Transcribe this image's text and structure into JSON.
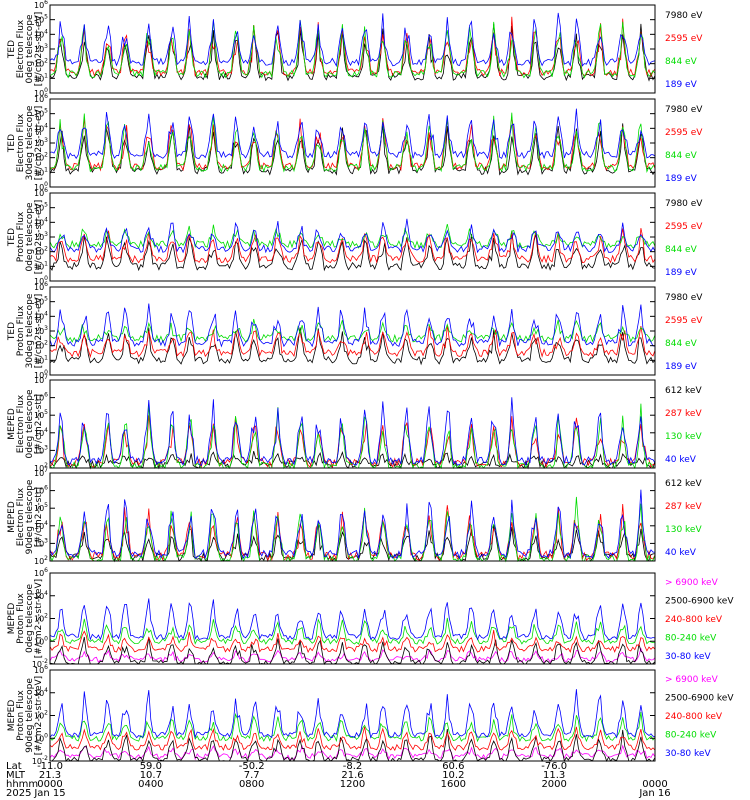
{
  "colors": {
    "blue": "#0000ff",
    "red": "#ff0000",
    "green": "#00dd00",
    "black": "#000000",
    "magenta": "#ff00ff"
  },
  "chart_data": [
    {
      "type": "line",
      "ylabel": [
        "TED",
        "Electron Flux",
        "0deg telescope",
        "[#/cm2-s-str-eV]"
      ],
      "yscale": "log",
      "yticks": [
        "10^0",
        "10^1",
        "10^2",
        "10^3",
        "10^4",
        "10^5",
        "10^6"
      ],
      "ylim": [
        1,
        1000000
      ],
      "series": [
        {
          "name": "7980 eV",
          "color": "#000000",
          "base": 1.1,
          "peak": 4.8
        },
        {
          "name": "2595 eV",
          "color": "#ff0000",
          "base": 1.4,
          "peak": 5.2
        },
        {
          "name": "844 eV",
          "color": "#00dd00",
          "base": 1.3,
          "peak": 5.4
        },
        {
          "name": "189 eV",
          "color": "#0000ff",
          "base": 2.1,
          "peak": 5.6
        }
      ]
    },
    {
      "type": "line",
      "ylabel": [
        "TED",
        "Electron Flux",
        "30deg telescope",
        "[#/cm2-s-str-eV]"
      ],
      "yscale": "log",
      "yticks": [
        "10^0",
        "10^1",
        "10^2",
        "10^3",
        "10^4",
        "10^5",
        "10^6"
      ],
      "ylim": [
        1,
        1000000
      ],
      "series": [
        {
          "name": "7980 eV",
          "color": "#000000",
          "base": 1.1,
          "peak": 4.6
        },
        {
          "name": "2595 eV",
          "color": "#ff0000",
          "base": 1.4,
          "peak": 5.0
        },
        {
          "name": "844 eV",
          "color": "#00dd00",
          "base": 1.3,
          "peak": 5.2
        },
        {
          "name": "189 eV",
          "color": "#0000ff",
          "base": 2.2,
          "peak": 5.5
        }
      ]
    },
    {
      "type": "line",
      "ylabel": [
        "TED",
        "Proton Flux",
        "0deg telescope",
        "[#/cm2-s-str-eV]"
      ],
      "yscale": "log",
      "yticks": [
        "10^0",
        "10^1",
        "10^2",
        "10^3",
        "10^4",
        "10^5",
        "10^6"
      ],
      "ylim": [
        1,
        1000000
      ],
      "series": [
        {
          "name": "7980 eV",
          "color": "#000000",
          "base": 1.0,
          "peak": 3.4
        },
        {
          "name": "2595 eV",
          "color": "#ff0000",
          "base": 1.5,
          "peak": 3.6
        },
        {
          "name": "844 eV",
          "color": "#00dd00",
          "base": 2.5,
          "peak": 3.7
        },
        {
          "name": "189 eV",
          "color": "#0000ff",
          "base": 2.2,
          "peak": 4.2
        }
      ]
    },
    {
      "type": "line",
      "ylabel": [
        "TED",
        "Proton Flux",
        "30deg telescope",
        "[#/cm2-s-str-eV]"
      ],
      "yscale": "log",
      "yticks": [
        "10^0",
        "10^1",
        "10^2",
        "10^3",
        "10^4",
        "10^5",
        "10^6"
      ],
      "ylim": [
        1,
        1000000
      ],
      "series": [
        {
          "name": "7980 eV",
          "color": "#000000",
          "base": 1.0,
          "peak": 3.3
        },
        {
          "name": "2595 eV",
          "color": "#ff0000",
          "base": 1.5,
          "peak": 3.5
        },
        {
          "name": "844 eV",
          "color": "#00dd00",
          "base": 2.5,
          "peak": 3.7
        },
        {
          "name": "189 eV",
          "color": "#0000ff",
          "base": 2.2,
          "peak": 5.3
        }
      ]
    },
    {
      "type": "line",
      "ylabel": [
        "MEPED",
        "Electron Flux",
        "0deg telescope",
        "[#/cm2-s-str]"
      ],
      "yscale": "log",
      "yticks": [
        "10^2",
        "10^3",
        "10^4",
        "10^5",
        "10^6",
        "10^7"
      ],
      "ylim": [
        100,
        10000000
      ],
      "series": [
        {
          "name": "612 keV",
          "color": "#000000",
          "base": 2.2,
          "peak": 2.9
        },
        {
          "name": "287 keV",
          "color": "#ff0000",
          "base": 2.3,
          "peak": 5.2
        },
        {
          "name": "130 keV",
          "color": "#00dd00",
          "base": 2.1,
          "peak": 5.6
        },
        {
          "name": "40 keV",
          "color": "#0000ff",
          "base": 2.4,
          "peak": 6.2
        }
      ]
    },
    {
      "type": "line",
      "ylabel": [
        "MEPED",
        "Electron Flux",
        "90deg telescope",
        "[#/cm2-s-str]"
      ],
      "yscale": "log",
      "yticks": [
        "10^2",
        "10^3",
        "10^4",
        "10^5",
        "10^6",
        "10^7"
      ],
      "ylim": [
        100,
        10000000
      ],
      "series": [
        {
          "name": "612 keV",
          "color": "#000000",
          "base": 2.2,
          "peak": 4.2
        },
        {
          "name": "287 keV",
          "color": "#ff0000",
          "base": 2.3,
          "peak": 5.3
        },
        {
          "name": "130 keV",
          "color": "#00dd00",
          "base": 2.1,
          "peak": 5.6
        },
        {
          "name": "40 keV",
          "color": "#0000ff",
          "base": 2.4,
          "peak": 6.0
        }
      ]
    },
    {
      "type": "line",
      "ylabel": [
        "MEPED",
        "Proton Flux",
        "0deg telescope",
        "[#/cm2-s-str-keV]"
      ],
      "yscale": "log",
      "yticks": [
        "10^-2",
        "10^0",
        "10^2",
        "10^4",
        "10^6"
      ],
      "ylim": [
        0.01,
        1000000
      ],
      "series": [
        {
          "name": "> 6900 keV",
          "color": "#ff00ff",
          "base": -1.6,
          "peak": -0.8
        },
        {
          "name": "2500-6900 keV",
          "color": "#000000",
          "base": -1.9,
          "peak": 0.6
        },
        {
          "name": "240-800 keV",
          "color": "#ff0000",
          "base": -0.7,
          "peak": 0.9
        },
        {
          "name": "80-240 keV",
          "color": "#00dd00",
          "base": 0.0,
          "peak": 2.0
        },
        {
          "name": "30-80 keV",
          "color": "#0000ff",
          "base": 0.4,
          "peak": 4.2
        }
      ]
    },
    {
      "type": "line",
      "ylabel": [
        "MEPED",
        "Proton Flux",
        "90deg telescope",
        "[#/cm2-s-str-keV]"
      ],
      "yscale": "log",
      "yticks": [
        "10^-2",
        "10^0",
        "10^2",
        "10^4",
        "10^6"
      ],
      "ylim": [
        0.01,
        1000000
      ],
      "series": [
        {
          "name": "> 6900 keV",
          "color": "#ff00ff",
          "base": -1.6,
          "peak": -0.6
        },
        {
          "name": "2500-6900 keV",
          "color": "#000000",
          "base": -1.9,
          "peak": 0.7
        },
        {
          "name": "240-800 keV",
          "color": "#ff0000",
          "base": -0.8,
          "peak": 1.1
        },
        {
          "name": "80-240 keV",
          "color": "#00dd00",
          "base": 0.0,
          "peak": 2.2
        },
        {
          "name": "30-80 keV",
          "color": "#0000ff",
          "base": 0.3,
          "peak": 4.3
        }
      ]
    }
  ],
  "x_axis": {
    "row_labels": [
      "Lat",
      "MLT",
      "hhmm",
      "2025"
    ],
    "ticks": [
      {
        "lat": "-11.0",
        "mlt": "21.3",
        "hhmm": "0000",
        "date": "Jan 15"
      },
      {
        "lat": "59.0",
        "mlt": "10.7",
        "hhmm": "0400",
        "date": ""
      },
      {
        "lat": "-50.2",
        "mlt": "7.7",
        "hhmm": "0800",
        "date": ""
      },
      {
        "lat": "-8.2",
        "mlt": "21.6",
        "hhmm": "1200",
        "date": ""
      },
      {
        "lat": "60.6",
        "mlt": "10.2",
        "hhmm": "1600",
        "date": ""
      },
      {
        "lat": "-76.0",
        "mlt": "11.3",
        "hhmm": "2000",
        "date": ""
      },
      {
        "lat": "",
        "mlt": "",
        "hhmm": "0000",
        "date": "Jan 16"
      }
    ]
  }
}
